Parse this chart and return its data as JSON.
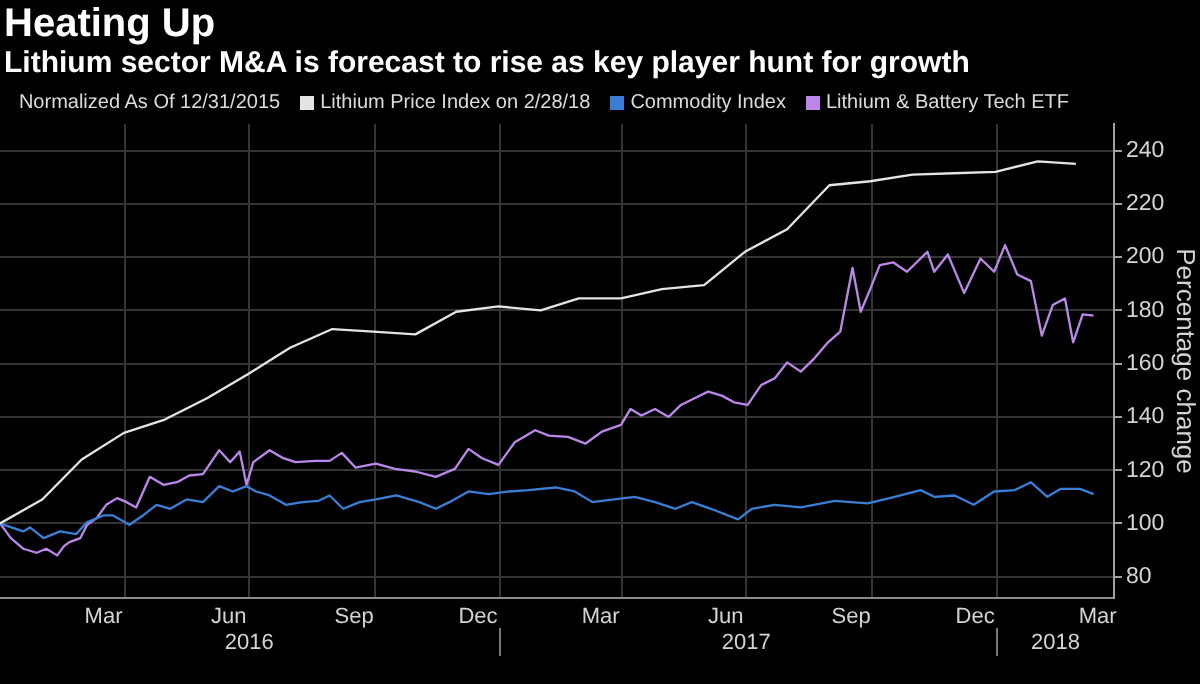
{
  "chart_data": {
    "type": "line",
    "title": "Heating Up",
    "subtitle": "Lithium sector M&A is forecast to rise as key player hunt for growth",
    "legend_title": "Normalized As Of 12/31/2015",
    "ylabel": "Percentage change",
    "series": [
      {
        "name": "Lithium Price Index on 2/28/18",
        "color": "#e4e4e4",
        "x": [
          "2015-12-31",
          "2016-01-31",
          "2016-02-29",
          "2016-03-31",
          "2016-04-30",
          "2016-05-31",
          "2016-06-30",
          "2016-07-31",
          "2016-08-31",
          "2016-09-30",
          "2016-10-31",
          "2016-11-30",
          "2016-12-31",
          "2017-01-31",
          "2017-02-28",
          "2017-03-31",
          "2017-04-30",
          "2017-05-31",
          "2017-06-30",
          "2017-07-31",
          "2017-08-31",
          "2017-09-30",
          "2017-10-31",
          "2017-11-30",
          "2017-12-31",
          "2018-01-31",
          "2018-02-28"
        ],
        "values": [
          100,
          109,
          124,
          134,
          139,
          147,
          156,
          166,
          173,
          172,
          171,
          179.5,
          181.5,
          180,
          184.5,
          184.5,
          188,
          189.5,
          202,
          210.5,
          227,
          228.5,
          231,
          231.5,
          232,
          236,
          235
        ]
      },
      {
        "name": "Commodity Index",
        "color": "#3a7fd5",
        "x": [
          "2015-12-31",
          "2016-01-17",
          "2016-01-22",
          "2016-02-01",
          "2016-02-13",
          "2016-02-25",
          "2016-03-04",
          "2016-03-16",
          "2016-03-23",
          "2016-04-04",
          "2016-04-14",
          "2016-04-24",
          "2016-05-04",
          "2016-05-16",
          "2016-05-28",
          "2016-06-09",
          "2016-06-19",
          "2016-06-29",
          "2016-07-06",
          "2016-07-16",
          "2016-07-28",
          "2016-08-09",
          "2016-08-21",
          "2016-08-29",
          "2016-09-08",
          "2016-09-20",
          "2016-10-02",
          "2016-10-17",
          "2016-11-03",
          "2016-11-15",
          "2016-11-25",
          "2016-12-09",
          "2016-12-24",
          "2017-01-08",
          "2017-01-22",
          "2017-02-11",
          "2017-02-25",
          "2017-03-10",
          "2017-03-17",
          "2017-04-10",
          "2017-04-25",
          "2017-05-10",
          "2017-05-22",
          "2017-06-05",
          "2017-06-25",
          "2017-07-05",
          "2017-07-22",
          "2017-08-10",
          "2017-09-04",
          "2017-09-28",
          "2017-10-18",
          "2017-11-06",
          "2017-11-16",
          "2017-12-01",
          "2017-12-15",
          "2017-12-30",
          "2018-01-14",
          "2018-01-26",
          "2018-02-07",
          "2018-02-17",
          "2018-03-03",
          "2018-03-13"
        ],
        "values": [
          100,
          97,
          98.5,
          94.5,
          97,
          96,
          100.5,
          103,
          103,
          99.5,
          103,
          107,
          105.5,
          109,
          108,
          114,
          112,
          114,
          112,
          110.5,
          107,
          108,
          108.5,
          110.5,
          105.5,
          108,
          109,
          110.5,
          108,
          105.5,
          108,
          112,
          111,
          112,
          112.5,
          113.5,
          112,
          108,
          108.5,
          110,
          108,
          105.5,
          108,
          105.5,
          101.5,
          105.5,
          107,
          106,
          108.5,
          107.5,
          110,
          112.5,
          110,
          110.5,
          107,
          112,
          112.5,
          115.5,
          110,
          113,
          113,
          111
        ]
      },
      {
        "name": "Lithium & Battery Tech ETF",
        "color": "#bb88ea",
        "x": [
          "2015-12-31",
          "2016-01-08",
          "2016-01-17",
          "2016-01-27",
          "2016-02-03",
          "2016-02-11",
          "2016-02-16",
          "2016-02-20",
          "2016-02-28",
          "2016-03-04",
          "2016-03-11",
          "2016-03-18",
          "2016-03-26",
          "2016-04-02",
          "2016-04-09",
          "2016-04-19",
          "2016-04-29",
          "2016-05-09",
          "2016-05-18",
          "2016-05-28",
          "2016-06-09",
          "2016-06-17",
          "2016-06-24",
          "2016-06-29",
          "2016-07-04",
          "2016-07-16",
          "2016-07-26",
          "2016-08-04",
          "2016-08-19",
          "2016-08-29",
          "2016-09-07",
          "2016-09-17",
          "2016-10-02",
          "2016-10-16",
          "2016-10-31",
          "2016-11-15",
          "2016-11-29",
          "2016-12-09",
          "2016-12-19",
          "2016-12-31",
          "2017-01-12",
          "2017-01-27",
          "2017-02-06",
          "2017-02-20",
          "2017-03-05",
          "2017-03-17",
          "2017-03-31",
          "2017-04-07",
          "2017-04-15",
          "2017-04-25",
          "2017-05-05",
          "2017-05-14",
          "2017-05-24",
          "2017-06-03",
          "2017-06-13",
          "2017-06-22",
          "2017-07-02",
          "2017-07-12",
          "2017-07-22",
          "2017-07-31",
          "2017-08-10",
          "2017-08-20",
          "2017-08-30",
          "2017-09-08",
          "2017-09-17",
          "2017-09-23",
          "2017-09-30",
          "2017-10-07",
          "2017-10-17",
          "2017-10-27",
          "2017-11-11",
          "2017-11-16",
          "2017-11-26",
          "2017-12-08",
          "2017-12-20",
          "2017-12-30",
          "2018-01-07",
          "2018-01-16",
          "2018-01-26",
          "2018-02-03",
          "2018-02-11",
          "2018-02-20",
          "2018-02-26",
          "2018-03-05",
          "2018-03-13"
        ],
        "values": [
          100,
          94.5,
          90.5,
          89,
          90.5,
          88,
          91.5,
          93,
          94.5,
          99.5,
          102,
          107,
          109.5,
          108,
          106,
          117.5,
          114.5,
          115.5,
          118,
          118.5,
          127.5,
          123,
          127,
          114.5,
          123,
          127.5,
          124.5,
          123,
          123.5,
          123.5,
          126.5,
          121,
          122.5,
          120.5,
          119.5,
          117.5,
          120.5,
          128,
          124.5,
          122,
          130.5,
          135,
          133,
          132.5,
          130,
          134.5,
          137,
          143,
          140.5,
          143,
          140,
          144.5,
          147,
          149.5,
          148,
          145.5,
          144.5,
          152,
          154.5,
          160.5,
          157,
          162,
          168,
          172,
          196,
          179.5,
          188,
          197,
          198,
          194.5,
          202,
          194.5,
          201,
          186.5,
          199.5,
          194.5,
          204.5,
          193.5,
          191,
          170.5,
          182,
          184.5,
          168,
          178.5,
          178
        ]
      }
    ],
    "xlim": [
      "2015-12-31",
      "2018-03-28"
    ],
    "xticks": [
      {
        "value": "2016-03-16",
        "label": "Mar"
      },
      {
        "value": "2016-04-01",
        "label": null
      },
      {
        "value": "2016-06-16",
        "label": "Jun"
      },
      {
        "value": "2016-07-01",
        "label": null
      },
      {
        "value": "2016-09-16",
        "label": "Sep"
      },
      {
        "value": "2016-10-01",
        "label": null
      },
      {
        "value": "2016-12-16",
        "label": "Dec"
      },
      {
        "value": "2017-01-01",
        "label": null
      },
      {
        "value": "2017-03-16",
        "label": "Mar"
      },
      {
        "value": "2017-04-01",
        "label": null
      },
      {
        "value": "2017-06-16",
        "label": "Jun"
      },
      {
        "value": "2017-07-01",
        "label": null
      },
      {
        "value": "2017-09-16",
        "label": "Sep"
      },
      {
        "value": "2017-10-01",
        "label": null
      },
      {
        "value": "2017-12-16",
        "label": "Dec"
      },
      {
        "value": "2018-01-01",
        "label": null
      },
      {
        "value": "2018-03-16",
        "label": "Mar"
      }
    ],
    "x2lim": [
      "2015-12-31",
      "2018-03-28"
    ],
    "x2ticks": [
      {
        "value": "2016-07-01",
        "label": "2016"
      },
      {
        "value": "2017-01-01",
        "label": null
      },
      {
        "value": "2017-07-01",
        "label": "2017"
      },
      {
        "value": "2018-01-01",
        "label": null
      },
      {
        "value": "2018-02-13",
        "label": "2018"
      }
    ],
    "ylim": [
      72,
      250
    ],
    "yticks": [
      80,
      100,
      120,
      140,
      160,
      180,
      200,
      220,
      240
    ],
    "grid": true,
    "legend": "top",
    "marker": "none",
    "line_style": "solid"
  }
}
